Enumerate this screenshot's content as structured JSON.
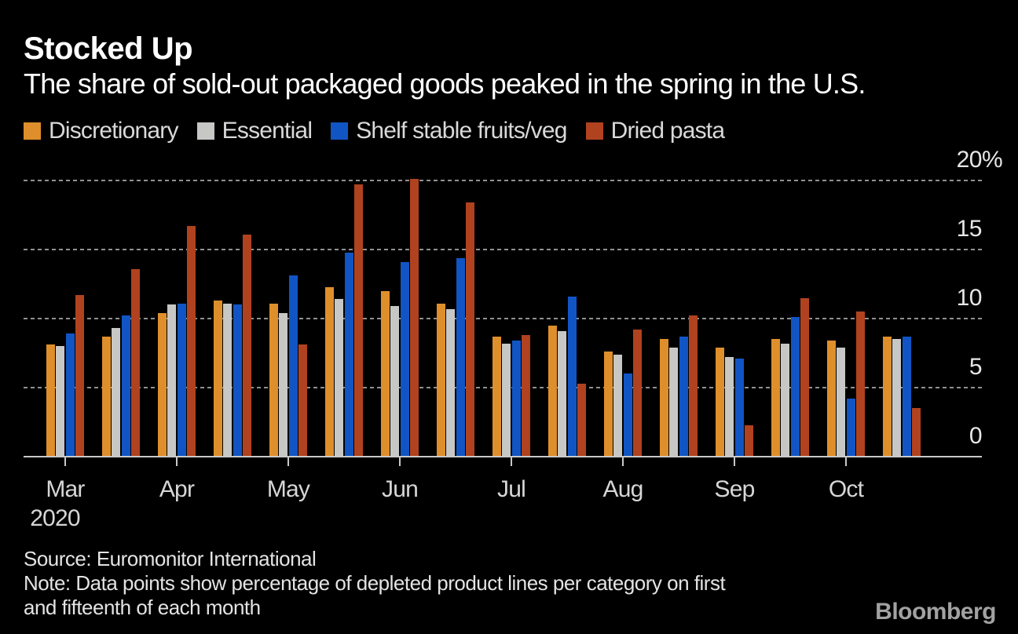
{
  "header": {
    "title": "Stocked Up",
    "subtitle": "The share of sold-out packaged goods peaked in the spring in the U.S."
  },
  "chart_data": {
    "type": "bar",
    "title": "Stocked Up",
    "subtitle": "The share of sold-out packaged goods peaked in the spring in the U.S.",
    "unit": "%",
    "ylim": [
      0,
      20
    ],
    "yticks": [
      0,
      5,
      10,
      15,
      20
    ],
    "ytick_labels": [
      "0",
      "5",
      "10",
      "15",
      "20%"
    ],
    "grid": "horizontal-dashed",
    "legend_position": "top-left",
    "months": [
      "Mar",
      "Apr",
      "May",
      "Jun",
      "Jul",
      "Aug",
      "Sep",
      "Oct"
    ],
    "year_label": "2020",
    "categories": [
      "Mar 1",
      "Mar 15",
      "Apr 1",
      "Apr 15",
      "May 1",
      "May 15",
      "Jun 1",
      "Jun 15",
      "Jul 1",
      "Jul 15",
      "Aug 1",
      "Aug 15",
      "Sep 1",
      "Sep 15",
      "Oct 1",
      "Oct 15"
    ],
    "series": [
      {
        "name": "Discretionary",
        "color": "#de8f2b",
        "values": [
          8.1,
          8.7,
          10.4,
          11.3,
          11.1,
          12.3,
          12.0,
          11.1,
          8.7,
          9.5,
          7.6,
          8.5,
          7.9,
          8.5,
          8.4,
          8.7
        ]
      },
      {
        "name": "Essential",
        "color": "#c7c7c5",
        "values": [
          8.0,
          9.3,
          11.0,
          11.1,
          10.4,
          11.4,
          10.9,
          10.7,
          8.2,
          9.1,
          7.4,
          7.9,
          7.2,
          8.2,
          7.9,
          8.5
        ]
      },
      {
        "name": "Shelf stable fruits/veg",
        "color": "#1155c4",
        "values": [
          8.9,
          10.2,
          11.1,
          11.0,
          13.1,
          14.8,
          14.1,
          14.4,
          8.4,
          11.6,
          6.0,
          8.7,
          7.1,
          10.1,
          4.2,
          8.7
        ]
      },
      {
        "name": "Dried pasta",
        "color": "#b0421f",
        "values": [
          11.7,
          13.6,
          16.7,
          16.1,
          8.1,
          19.7,
          20.1,
          18.4,
          8.8,
          5.3,
          9.2,
          10.2,
          2.3,
          11.5,
          10.5,
          3.5
        ]
      }
    ]
  },
  "footer": {
    "source": "Source: Euromonitor International",
    "note_line1": "Note: Data points show percentage of depleted product lines per category on first",
    "note_line2": "and fifteenth of each month"
  },
  "branding": {
    "logo": "Bloomberg"
  },
  "colors": {
    "background": "#000000",
    "title_text": "#ffffff",
    "axis_text": "#d6d6d6",
    "gridline": "#919191",
    "baseline": "#c9c9c9",
    "logo_text": "#a2a2a2"
  }
}
